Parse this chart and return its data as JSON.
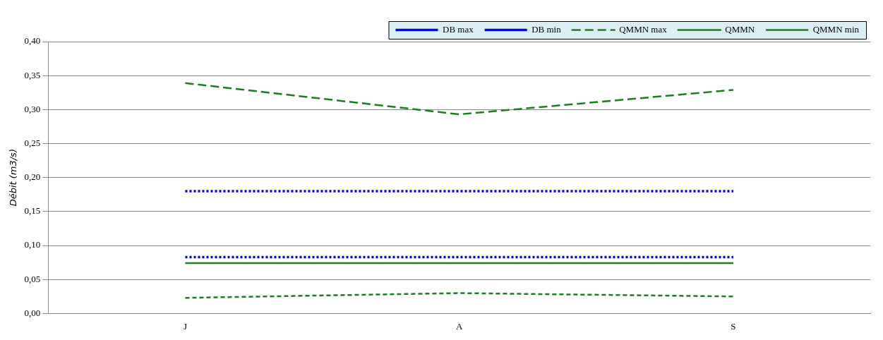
{
  "chart_data": {
    "type": "line",
    "ylabel": "Débit (m3/s)",
    "categories": [
      "J",
      "A",
      "S"
    ],
    "series": [
      {
        "name": "DB max",
        "color": "#0000ff",
        "line_style": "dotted",
        "values": [
          0.18,
          0.18,
          0.18
        ]
      },
      {
        "name": "DB min",
        "color": "#0000ff",
        "line_style": "dotted",
        "values": [
          0.083,
          0.083,
          0.083
        ]
      },
      {
        "name": "QMMN max",
        "color": "#1e7b1e",
        "line_style": "dashed",
        "values": [
          0.339,
          0.293,
          0.329
        ]
      },
      {
        "name": "QMMN",
        "color": "#1e7b1e",
        "line_style": "solid",
        "values": [
          0.074,
          0.074,
          0.074
        ]
      },
      {
        "name": "QMMN min",
        "color": "#1e7b1e",
        "line_style": "dashed",
        "values": [
          0.023,
          0.03,
          0.025
        ]
      }
    ],
    "ylim": [
      0,
      0.4
    ],
    "yticks": [
      {
        "value": 0,
        "label": "0,00"
      },
      {
        "value": 0.05,
        "label": "0,05"
      },
      {
        "value": 0.1,
        "label": "0,10"
      },
      {
        "value": 0.15,
        "label": "0,15"
      },
      {
        "value": 0.2,
        "label": "0,20"
      },
      {
        "value": 0.25,
        "label": "0,25"
      },
      {
        "value": 0.3,
        "label": "0,30"
      },
      {
        "value": 0.35,
        "label": "0,35"
      },
      {
        "value": 0.4,
        "label": "0,40"
      }
    ],
    "grid": "y",
    "legend": "top right",
    "marker": "none"
  }
}
